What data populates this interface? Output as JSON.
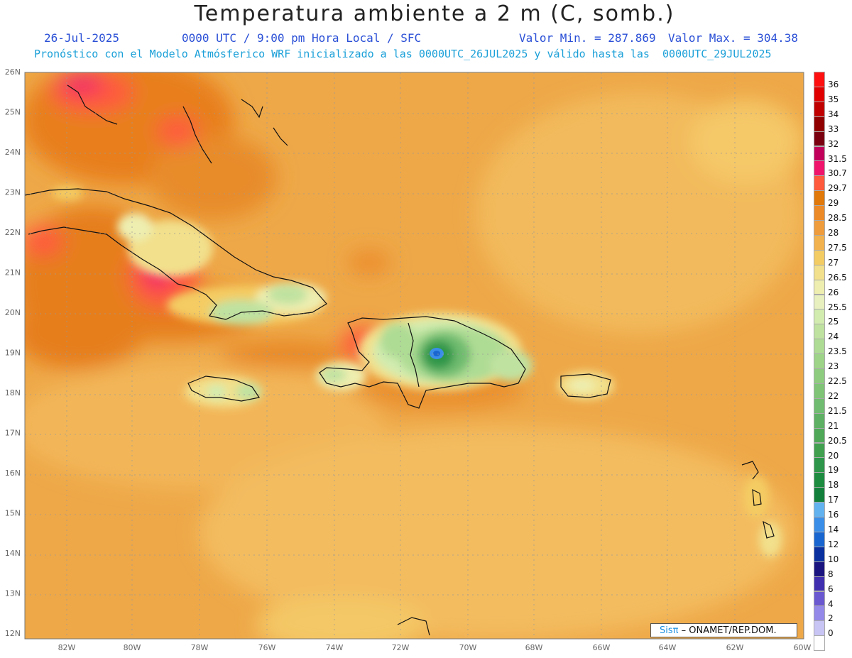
{
  "header": {
    "title": "Temperatura ambiente a 2 m (C, somb.)",
    "date": "26-Jul-2025",
    "time": "0000 UTC / 9:00 pm Hora Local / SFC",
    "min": "Valor Min. = 287.869",
    "max": "Valor Max. = 304.38",
    "model_line": "Pronóstico con el Modelo Atmósferico WRF inicializado a las 0000UTC_26JUL2025 y válido hasta las  0000UTC_29JUL2025"
  },
  "axes": {
    "lat_labels": [
      "26N",
      "25N",
      "24N",
      "23N",
      "22N",
      "21N",
      "20N",
      "19N",
      "18N",
      "17N",
      "16N",
      "15N",
      "14N",
      "13N",
      "12N"
    ],
    "lon_labels": [
      "82W",
      "80W",
      "78W",
      "76W",
      "74W",
      "72W",
      "70W",
      "68W",
      "66W",
      "64W",
      "62W",
      "60W"
    ]
  },
  "colorbar": {
    "labels": [
      "36",
      "35",
      "34",
      "33",
      "32",
      "31.5",
      "30.7",
      "29.7",
      "29",
      "28.5",
      "28",
      "27.5",
      "27",
      "26.5",
      "26",
      "25.5",
      "25",
      "24",
      "23.5",
      "23",
      "22.5",
      "22",
      "21.5",
      "21",
      "20.5",
      "20",
      "19",
      "18",
      "17",
      "16",
      "14",
      "12",
      "10",
      "8",
      "6",
      "4",
      "2",
      "0"
    ],
    "colors": [
      "#ff1010",
      "#e00000",
      "#c00000",
      "#900000",
      "#7a0010",
      "#c0005a",
      "#f0146c",
      "#ff5a3c",
      "#e0780a",
      "#ec8a28",
      "#ee9c3c",
      "#f2b24e",
      "#f4cc64",
      "#f2e08c",
      "#eeeeb0",
      "#e8f0c0",
      "#d2ecb0",
      "#c0e2a0",
      "#aedc94",
      "#9ed488",
      "#8ecc80",
      "#80c478",
      "#70bc70",
      "#5eb064",
      "#4ea858",
      "#40a050",
      "#2d964a",
      "#1e8c40",
      "#12803a",
      "#62b2f0",
      "#3a8ee8",
      "#1a66d0",
      "#0a30a0",
      "#1a1480",
      "#4030b0",
      "#6a58d0",
      "#9488e8",
      "#c8c4f4",
      "#ffffff"
    ]
  },
  "credit": {
    "sis": "Sisπ",
    "rest": "– ONAMET/REP.DOM."
  }
}
